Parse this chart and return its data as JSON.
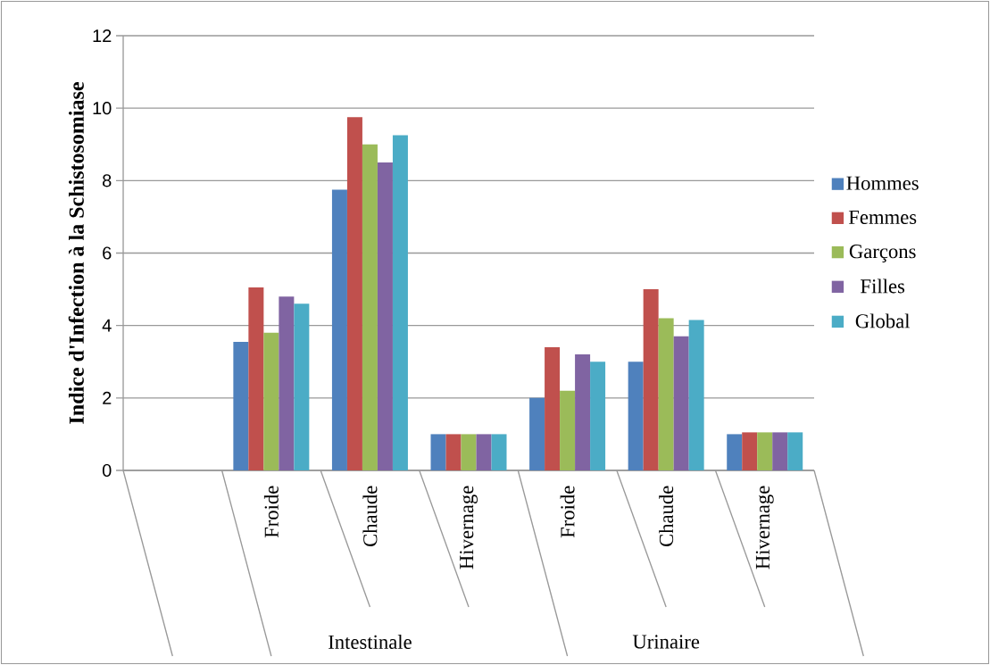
{
  "chart_data": {
    "type": "bar",
    "ylabel": "Indice d'Infection à la Schistosomiase",
    "categories": [
      null,
      "Froide",
      "Chaude",
      "Hivernage",
      "Froide",
      "Chaude",
      "Hivernage"
    ],
    "annotations": [
      "Intestinale",
      "Urinaire"
    ],
    "series": [
      {
        "name": "Hommes",
        "color": "#4f81bd",
        "values": [
          null,
          3.55,
          7.75,
          1.0,
          2.0,
          3.0,
          1.0
        ]
      },
      {
        "name": "Femmes",
        "color": "#c0504d",
        "values": [
          null,
          5.05,
          9.75,
          1.0,
          3.4,
          5.0,
          1.05
        ]
      },
      {
        "name": "Garçons",
        "color": "#9bbb59",
        "values": [
          null,
          3.8,
          9.0,
          1.0,
          2.2,
          4.2,
          1.05
        ]
      },
      {
        "name": "Filles",
        "color": "#8064a2",
        "values": [
          null,
          4.8,
          8.5,
          1.0,
          3.2,
          3.7,
          1.05
        ]
      },
      {
        "name": "Global",
        "color": "#4bacc6",
        "values": [
          null,
          4.6,
          9.25,
          1.0,
          3.0,
          4.15,
          1.05
        ]
      }
    ],
    "ylim": [
      0,
      12
    ],
    "yticks": [
      0,
      2,
      4,
      6,
      8,
      10,
      12
    ],
    "grid": "y",
    "legend": "right"
  }
}
